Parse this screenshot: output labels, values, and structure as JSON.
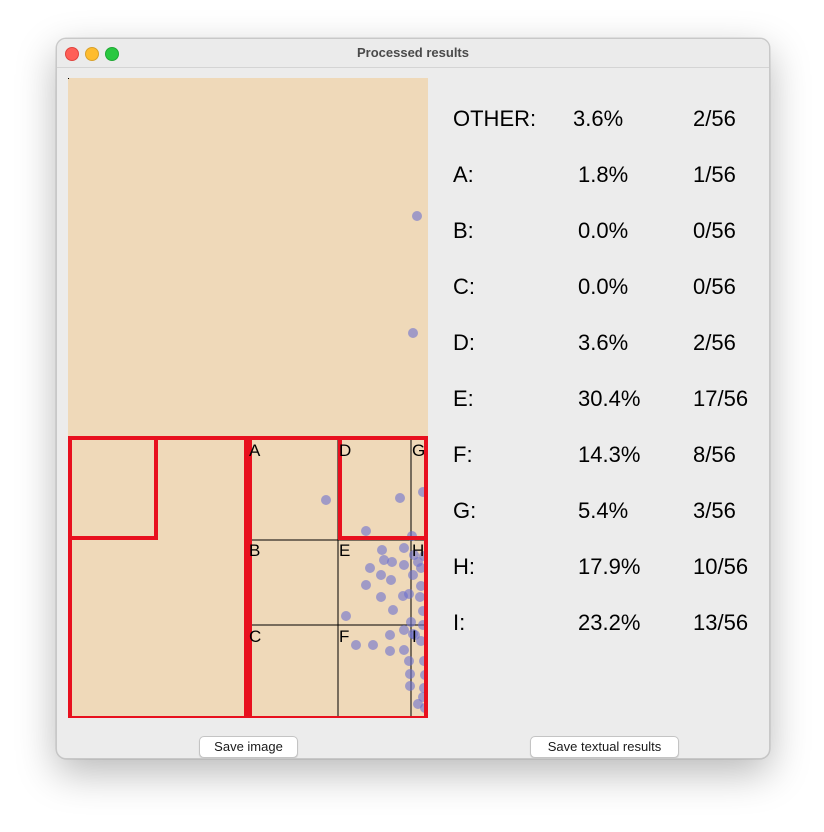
{
  "window": {
    "title": "Processed results"
  },
  "canvas": {
    "background": "#efd9b9",
    "grid_lines": "#000000",
    "highlight": "#e8101e",
    "point_color": "#6b6fcf",
    "region_labels": [
      "A",
      "B",
      "C",
      "D",
      "E",
      "F",
      "G",
      "H",
      "I"
    ]
  },
  "results": [
    {
      "label": "OTHER:",
      "percent": "3.6%",
      "count": "2/56"
    },
    {
      "label": "A:",
      "percent": "1.8%",
      "count": "1/56"
    },
    {
      "label": "B:",
      "percent": "0.0%",
      "count": "0/56"
    },
    {
      "label": "C:",
      "percent": "0.0%",
      "count": "0/56"
    },
    {
      "label": "D:",
      "percent": "3.6%",
      "count": "2/56"
    },
    {
      "label": "E:",
      "percent": "30.4%",
      "count": "17/56"
    },
    {
      "label": "F:",
      "percent": "14.3%",
      "count": "8/56"
    },
    {
      "label": "G:",
      "percent": "5.4%",
      "count": "3/56"
    },
    {
      "label": "H:",
      "percent": "17.9%",
      "count": "10/56"
    },
    {
      "label": "I:",
      "percent": "23.2%",
      "count": "13/56"
    }
  ],
  "buttons": {
    "save_image": "Save image",
    "save_text": "Save textual results"
  }
}
